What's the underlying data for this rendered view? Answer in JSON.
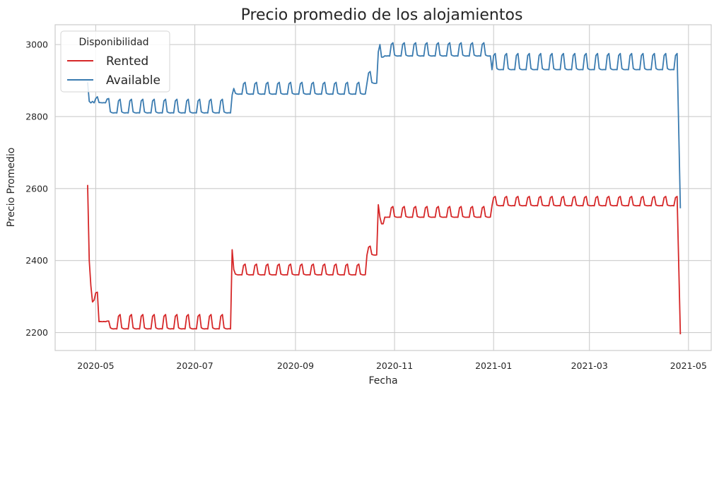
{
  "chart_data": {
    "type": "line",
    "title": "Precio promedio de los alojamientos",
    "xlabel": "Fecha",
    "ylabel": "Precio Promedio",
    "x_range": [
      "2020-04-06",
      "2021-05-15"
    ],
    "ylim": [
      2150,
      3055
    ],
    "x_ticks": [
      "2020-05",
      "2020-07",
      "2020-09",
      "2020-11",
      "2021-01",
      "2021-03",
      "2021-05"
    ],
    "y_ticks": [
      2200,
      2400,
      2600,
      2800,
      3000
    ],
    "grid": true,
    "legend": {
      "title": "Disponibilidad",
      "placement": "top-left"
    },
    "colors": {
      "Rented": "#d62728",
      "Available": "#3a7bb0",
      "grid": "#cccccc",
      "frame": "#cccccc"
    },
    "series": [
      {
        "name": "Rented",
        "segments": [
          {
            "start": "2020-04-26",
            "end": "2020-05-10",
            "level": 2230,
            "peak": 2232,
            "initial": [
              2610,
              2400,
              2330,
              2285,
              2290,
              2310,
              2312
            ]
          },
          {
            "start": "2020-05-10",
            "end": "2020-07-24",
            "level": 2210,
            "peak": 2250
          },
          {
            "start": "2020-07-24",
            "end": "2020-10-15",
            "level": 2360,
            "peak": 2390,
            "initial": [
              2430,
              2375
            ]
          },
          {
            "start": "2020-10-15",
            "end": "2020-10-22",
            "level": 2415,
            "peak": 2440
          },
          {
            "start": "2020-10-22",
            "end": "2020-12-31",
            "level": 2520,
            "peak": 2550,
            "initial": [
              2555,
              2520,
              2502,
              2502
            ]
          },
          {
            "start": "2020-12-31",
            "end": "2021-04-25",
            "level": 2552,
            "peak": 2578
          }
        ],
        "final": {
          "date": "2021-04-26",
          "value": 2195
        }
      },
      {
        "name": "Available",
        "segments": [
          {
            "start": "2020-04-26",
            "end": "2020-05-10",
            "level": 2838,
            "peak": 2850,
            "initial": [
              2895,
              2842,
              2838,
              2842,
              2838,
              2850,
              2855
            ]
          },
          {
            "start": "2020-05-10",
            "end": "2020-07-24",
            "level": 2810,
            "peak": 2848
          },
          {
            "start": "2020-07-24",
            "end": "2020-10-15",
            "level": 2862,
            "peak": 2895,
            "initial": [
              2860,
              2878
            ]
          },
          {
            "start": "2020-10-15",
            "end": "2020-10-22",
            "level": 2892,
            "peak": 2925
          },
          {
            "start": "2020-10-22",
            "end": "2020-12-31",
            "level": 2968,
            "peak": 3005,
            "initial": [
              2980,
              3000,
              2965,
              2965
            ]
          },
          {
            "start": "2020-12-31",
            "end": "2021-04-25",
            "level": 2930,
            "peak": 2975
          }
        ],
        "final": {
          "date": "2021-04-26",
          "value": 2545
        }
      }
    ]
  }
}
